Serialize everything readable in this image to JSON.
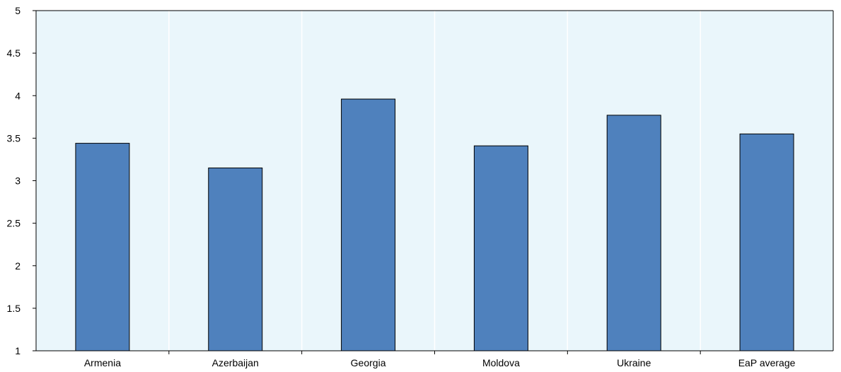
{
  "chart_data": {
    "type": "bar",
    "categories": [
      "Armenia",
      "Azerbaijan",
      "Georgia",
      "Moldova",
      "Ukraine",
      "EaP average"
    ],
    "values": [
      3.44,
      3.15,
      3.96,
      3.41,
      3.77,
      3.55
    ],
    "ylim": [
      1,
      5
    ],
    "yticks": [
      "1",
      "1.5",
      "2",
      "2.5",
      "3",
      "3.5",
      "4",
      "4.5",
      "5"
    ],
    "grid": "vertical",
    "legend": "none",
    "colors": {
      "bar": "#4f81bd",
      "bar_stroke": "#000000",
      "plot_background": "#eaf6fb",
      "grid": "#ffffff",
      "axis": "#000000"
    }
  }
}
